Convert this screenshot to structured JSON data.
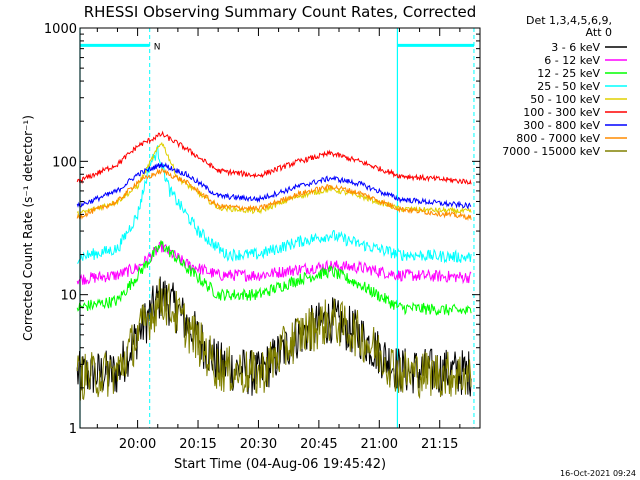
{
  "colors": {
    "background": "#ffffff",
    "axis": "#000000",
    "marker": "#00ffff",
    "series": [
      "#000000",
      "#ff00ff",
      "#00ff00",
      "#00ffff",
      "#e0d000",
      "#ff0000",
      "#0000ff",
      "#ff8c00",
      "#808000"
    ]
  },
  "chart_data": {
    "type": "line",
    "title": "RHESSI Observing Summary Count Rates, Corrected",
    "xlabel": "Start Time (04-Aug-06 19:45:42)",
    "ylabel": "Corrected Count Rate (s⁻¹ detector⁻¹)",
    "yscale": "log",
    "ylim": [
      1,
      1000
    ],
    "xlim": [
      "19:45:42",
      "21:25:00"
    ],
    "x_tick_labels": [
      "20:00",
      "20:15",
      "20:30",
      "20:45",
      "21:00",
      "21:15"
    ],
    "y_tick_labels": [
      "1",
      "10",
      "100",
      "1000"
    ],
    "legend_header": [
      "Det 1,3,4,5,6,9,",
      "Att 0"
    ],
    "legend_position": "right",
    "timestamp": "16-Oct-2021 09:24",
    "marker_label": "N",
    "markers": {
      "vertical_solid": [
        "19:45:42",
        "21:04:30"
      ],
      "vertical_dashed": [
        "20:03:00",
        "21:23:30"
      ],
      "bars": [
        {
          "from": "19:45:42",
          "to": "20:03:00",
          "value": 740
        },
        {
          "from": "21:04:30",
          "to": "21:23:30",
          "value": 740
        }
      ]
    },
    "series": [
      {
        "name": "3 - 6 keV",
        "points": [
          [
            "19:45",
            "2.5"
          ],
          [
            "19:55",
            "2.6"
          ],
          [
            "20:00",
            "5"
          ],
          [
            "20:06",
            "10"
          ],
          [
            "20:10",
            "7.5"
          ],
          [
            "20:20",
            "3"
          ],
          [
            "20:30",
            "2.5"
          ],
          [
            "20:40",
            "5"
          ],
          [
            "20:48",
            "6.5"
          ],
          [
            "20:55",
            "5"
          ],
          [
            "21:05",
            "2.7"
          ],
          [
            "21:23",
            "2.6"
          ]
        ]
      },
      {
        "name": "6 - 12 keV",
        "points": [
          [
            "19:45",
            "13"
          ],
          [
            "19:55",
            "14"
          ],
          [
            "20:00",
            "16"
          ],
          [
            "20:06",
            "23"
          ],
          [
            "20:12",
            "17"
          ],
          [
            "20:20",
            "14"
          ],
          [
            "20:30",
            "14"
          ],
          [
            "20:40",
            "15.5"
          ],
          [
            "20:48",
            "16.5"
          ],
          [
            "20:55",
            "16"
          ],
          [
            "21:05",
            "14"
          ],
          [
            "21:23",
            "13.5"
          ]
        ]
      },
      {
        "name": "12 - 25 keV",
        "points": [
          [
            "19:45",
            "8"
          ],
          [
            "19:55",
            "9"
          ],
          [
            "20:00",
            "14"
          ],
          [
            "20:06",
            "24"
          ],
          [
            "20:12",
            "16"
          ],
          [
            "20:20",
            "10"
          ],
          [
            "20:30",
            "10"
          ],
          [
            "20:40",
            "13"
          ],
          [
            "20:48",
            "15"
          ],
          [
            "20:55",
            "12"
          ],
          [
            "21:05",
            "8"
          ],
          [
            "21:23",
            "7.5"
          ]
        ]
      },
      {
        "name": "25 - 50 keV",
        "points": [
          [
            "19:45",
            "19"
          ],
          [
            "19:55",
            "22"
          ],
          [
            "20:00",
            "40"
          ],
          [
            "20:03",
            "95"
          ],
          [
            "20:05",
            "120"
          ],
          [
            "20:08",
            "60"
          ],
          [
            "20:15",
            "30"
          ],
          [
            "20:22",
            "20"
          ],
          [
            "20:30",
            "20"
          ],
          [
            "20:40",
            "25"
          ],
          [
            "20:48",
            "28"
          ],
          [
            "20:55",
            "24"
          ],
          [
            "21:05",
            "20"
          ],
          [
            "21:23",
            "19"
          ]
        ]
      },
      {
        "name": "50 - 100 keV",
        "points": [
          [
            "19:45",
            "40"
          ],
          [
            "19:55",
            "50"
          ],
          [
            "20:00",
            "65"
          ],
          [
            "20:04",
            "110"
          ],
          [
            "20:06",
            "140"
          ],
          [
            "20:10",
            "75"
          ],
          [
            "20:20",
            "45"
          ],
          [
            "20:30",
            "42"
          ],
          [
            "20:40",
            "55"
          ],
          [
            "20:48",
            "62"
          ],
          [
            "20:55",
            "55"
          ],
          [
            "21:05",
            "44"
          ],
          [
            "21:23",
            "42"
          ]
        ]
      },
      {
        "name": "100 - 300 keV",
        "points": [
          [
            "19:45",
            "70"
          ],
          [
            "19:55",
            "95"
          ],
          [
            "20:00",
            "130"
          ],
          [
            "20:06",
            "160"
          ],
          [
            "20:12",
            "125"
          ],
          [
            "20:20",
            "85"
          ],
          [
            "20:30",
            "78"
          ],
          [
            "20:40",
            "100"
          ],
          [
            "20:48",
            "115"
          ],
          [
            "20:55",
            "100"
          ],
          [
            "21:05",
            "78"
          ],
          [
            "21:23",
            "70"
          ]
        ]
      },
      {
        "name": "300 - 800 keV",
        "points": [
          [
            "19:45",
            "46"
          ],
          [
            "19:55",
            "60"
          ],
          [
            "20:00",
            "80"
          ],
          [
            "20:06",
            "95"
          ],
          [
            "20:12",
            "80"
          ],
          [
            "20:20",
            "55"
          ],
          [
            "20:30",
            "52"
          ],
          [
            "20:40",
            "65"
          ],
          [
            "20:48",
            "75"
          ],
          [
            "20:55",
            "68"
          ],
          [
            "21:05",
            "52"
          ],
          [
            "21:23",
            "46"
          ]
        ]
      },
      {
        "name": "800 - 7000 keV",
        "points": [
          [
            "19:45",
            "38"
          ],
          [
            "19:55",
            "50"
          ],
          [
            "20:00",
            "70"
          ],
          [
            "20:06",
            "85"
          ],
          [
            "20:12",
            "70"
          ],
          [
            "20:20",
            "46"
          ],
          [
            "20:30",
            "44"
          ],
          [
            "20:40",
            "57"
          ],
          [
            "20:48",
            "65"
          ],
          [
            "20:55",
            "58"
          ],
          [
            "21:05",
            "44"
          ],
          [
            "21:23",
            "38"
          ]
        ]
      },
      {
        "name": "7000 - 15000 keV",
        "points": [
          [
            "19:45",
            "2.4"
          ],
          [
            "19:55",
            "2.6"
          ],
          [
            "20:00",
            "5"
          ],
          [
            "20:06",
            "9.5"
          ],
          [
            "20:10",
            "7"
          ],
          [
            "20:20",
            "2.8"
          ],
          [
            "20:30",
            "2.5"
          ],
          [
            "20:40",
            "5"
          ],
          [
            "20:48",
            "6.5"
          ],
          [
            "20:55",
            "5"
          ],
          [
            "21:05",
            "2.6"
          ],
          [
            "21:23",
            "2.5"
          ]
        ]
      }
    ]
  }
}
